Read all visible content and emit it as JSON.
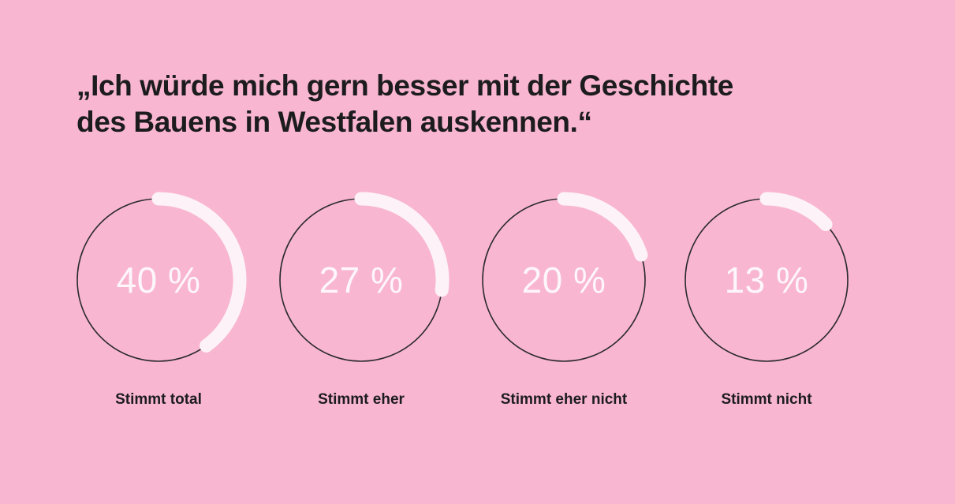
{
  "title": {
    "full": "„Ich würde mich gern besser mit der Geschichte des Bauens in Westfalen auskennen.“",
    "line1": "„Ich würde mich gern besser mit der Geschichte",
    "line2": "des Bauens in Westfalen auskennen.“"
  },
  "chart_data": {
    "type": "donut",
    "title": "„Ich würde mich gern besser mit der Geschichte des Bauens in Westfalen auskennen.“",
    "categories": [
      "Stimmt total",
      "Stimmt eher",
      "Stimmt eher nicht",
      "Stimmt nicht"
    ],
    "values": [
      40,
      27,
      20,
      13
    ],
    "unit": "%",
    "value_labels": [
      "40 %",
      "27 %",
      "20 %",
      "13 %"
    ],
    "layout": {
      "gauge_count": 4,
      "start_position": "top",
      "direction": "clockwise",
      "legend": "none",
      "grid": false
    }
  },
  "colors": {
    "background": "#f9b6d1",
    "arc": "#fcf2f7",
    "ring_outline": "#2a2a2d",
    "title_text": "#1c1c1e",
    "value_text": "#fdf6fa",
    "label_text": "#1c1c1e"
  }
}
